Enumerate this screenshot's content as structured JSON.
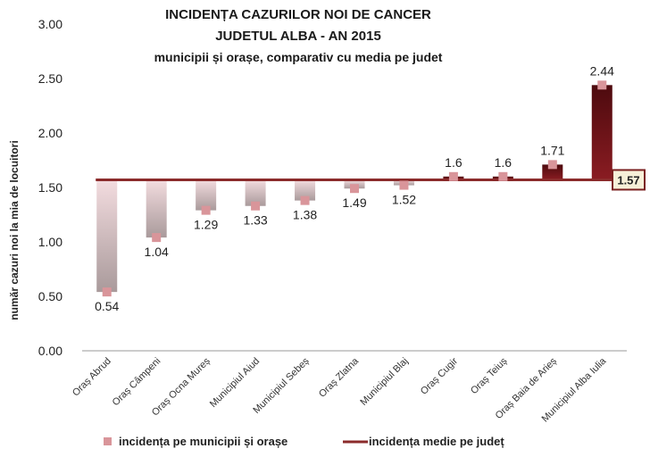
{
  "chart_data": {
    "type": "bar",
    "title_lines": [
      "INCIDENȚA CAZURILOR NOI DE CANCER",
      "JUDETUL ALBA - AN 2015",
      "municipii și orașe, comparativ cu media pe judet"
    ],
    "ylabel": "număr cazuri noi la  mia de locuitori",
    "ylim": [
      0,
      3
    ],
    "yticks": [
      "0.00",
      "0.50",
      "1.00",
      "1.50",
      "2.00",
      "2.50",
      "3.00"
    ],
    "categories": [
      "Oraș Abrud",
      "Oraș Câmpeni",
      "Oraș Ocna Mureș",
      "Municipiul Aiud",
      "Municipiul Sebeș",
      "Oraș Zlatna",
      "Municipiul Blaj",
      "Oraș Cugir",
      "Oraș Teiuș",
      "Oraș Baia de Arieș",
      "Municipiul Alba Iulia"
    ],
    "values": [
      0.54,
      1.04,
      1.29,
      1.33,
      1.38,
      1.49,
      1.52,
      1.6,
      1.6,
      1.71,
      2.44
    ],
    "value_labels": [
      "0.54",
      "1.04",
      "1.29",
      "1.33",
      "1.38",
      "1.49",
      "1.52",
      "1.6",
      "1.6",
      "1.71",
      "2.44"
    ],
    "average": 1.57,
    "average_label": "1.57",
    "legend": {
      "markers_label": "incidența pe municipii și orașe",
      "line_label": "incidența medie pe județ",
      "position": "bottom"
    },
    "colors": {
      "marker": "#d9959a",
      "average_line": "#8b2b2b",
      "above_bar": "#6e1016",
      "below_bar_top": "#f3dcdf",
      "below_bar_bottom": "#a99a9b",
      "axis": "#9a9a9a",
      "average_box_fill": "#f6f0d8",
      "average_box_border": "#7a2020"
    }
  }
}
